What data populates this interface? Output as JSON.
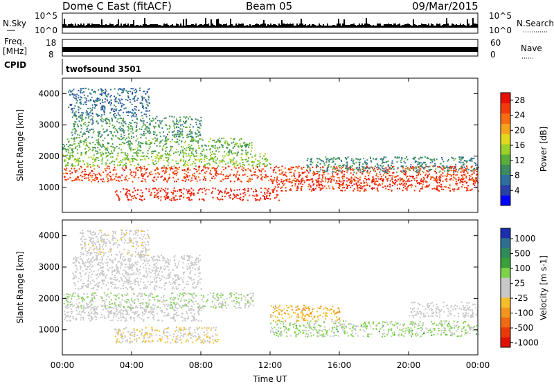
{
  "header": {
    "title": "Dome C East (fitACF)",
    "beam": "Beam 05",
    "date": "09/Mar/2015"
  },
  "status_labels": {
    "nsky": "N.Sky",
    "nsky_ticks": [
      "10^5",
      "10^0"
    ],
    "nsearch": "N.Search",
    "nsearch_ticks": [
      "10^5",
      "10^0"
    ],
    "freq": "Freq.",
    "freq_unit": "[MHz]",
    "freq_ticks": [
      "18",
      "8"
    ],
    "nave": "Nave",
    "nave_ticks": [
      "60",
      "0"
    ],
    "cpid": "CPID",
    "cpid_value": "twofsound 3501"
  },
  "chart_data": [
    {
      "type": "heatmap",
      "title": "",
      "xlabel": "",
      "ylabel": "Slant Range [km]",
      "x_tick_labels": [
        "00:00",
        "04:00",
        "08:00",
        "12:00",
        "16:00",
        "20:00",
        "00:00"
      ],
      "x_range_hours": [
        0,
        24
      ],
      "y_tick_labels": [
        "1000",
        "2000",
        "3000",
        "4000"
      ],
      "ylim": [
        200,
        4500
      ],
      "colorbar": {
        "label": "Power [dB]",
        "tick_labels": [
          "4",
          "8",
          "12",
          "16",
          "20",
          "24",
          "28"
        ],
        "range": [
          0,
          30
        ],
        "colors": [
          "#0000ff",
          "#2a40a8",
          "#2f6fa0",
          "#3a8c62",
          "#5aae3a",
          "#9cd12a",
          "#e2d81e",
          "#f7a21c",
          "#f86d12",
          "#f33a0a",
          "#e61005"
        ]
      },
      "bands": [
        {
          "range_km": [
            1200,
            1700
          ],
          "t_hours": [
            0,
            24
          ],
          "level": 26
        },
        {
          "range_km": [
            600,
            1000
          ],
          "t_hours": [
            3,
            12.5
          ],
          "level": 28
        },
        {
          "range_km": [
            900,
            1300
          ],
          "t_hours": [
            12,
            24
          ],
          "level": 27
        },
        {
          "range_km": [
            1700,
            2100
          ],
          "t_hours": [
            0,
            12
          ],
          "level": 14
        },
        {
          "range_km": [
            2100,
            2600
          ],
          "t_hours": [
            0,
            11
          ],
          "level": 12
        },
        {
          "range_km": [
            2600,
            3300
          ],
          "t_hours": [
            0.5,
            8
          ],
          "level": 10
        },
        {
          "range_km": [
            3300,
            4200
          ],
          "t_hours": [
            0.3,
            5
          ],
          "level": 7
        },
        {
          "range_km": [
            1500,
            2000
          ],
          "t_hours": [
            14,
            24
          ],
          "level": 9
        }
      ]
    },
    {
      "type": "heatmap",
      "title": "",
      "xlabel": "Time UT",
      "ylabel": "Slant Range [km]",
      "x_tick_labels": [
        "00:00",
        "04:00",
        "08:00",
        "12:00",
        "16:00",
        "20:00",
        "00:00"
      ],
      "x_range_hours": [
        0,
        24
      ],
      "y_tick_labels": [
        "1000",
        "2000",
        "3000",
        "4000"
      ],
      "ylim": [
        200,
        4500
      ],
      "colorbar": {
        "label": "Velocity [m s-1]",
        "tick_labels": [
          "1000",
          "500",
          "100",
          "25",
          "-25",
          "-100",
          "-500",
          "-1000"
        ],
        "range": [
          -1000,
          1000
        ],
        "colors": [
          "#1c2fb0",
          "#2e6e8e",
          "#2f8c5a",
          "#3aa03a",
          "#7dd44a",
          "#c8c8c8",
          "#c8c8c8",
          "#f6bf2a",
          "#f3971c",
          "#f06a12",
          "#ea3a0a",
          "#e01005"
        ]
      },
      "bands": [
        {
          "range_km": [
            1300,
            1800
          ],
          "t_hours": [
            0,
            8
          ],
          "level": 0
        },
        {
          "range_km": [
            600,
            1100
          ],
          "t_hours": [
            3,
            9
          ],
          "level": -120
        },
        {
          "range_km": [
            800,
            1300
          ],
          "t_hours": [
            12,
            24
          ],
          "level": 200
        },
        {
          "range_km": [
            1300,
            1800
          ],
          "t_hours": [
            12,
            16
          ],
          "level": -300
        },
        {
          "range_km": [
            1400,
            1900
          ],
          "t_hours": [
            20,
            24
          ],
          "level": 0
        },
        {
          "range_km": [
            1700,
            2200
          ],
          "t_hours": [
            0,
            11
          ],
          "level": 150
        },
        {
          "range_km": [
            2300,
            3400
          ],
          "t_hours": [
            0.5,
            8
          ],
          "level": 0
        },
        {
          "range_km": [
            3400,
            4200
          ],
          "t_hours": [
            1,
            5
          ],
          "level": -40
        }
      ]
    }
  ]
}
